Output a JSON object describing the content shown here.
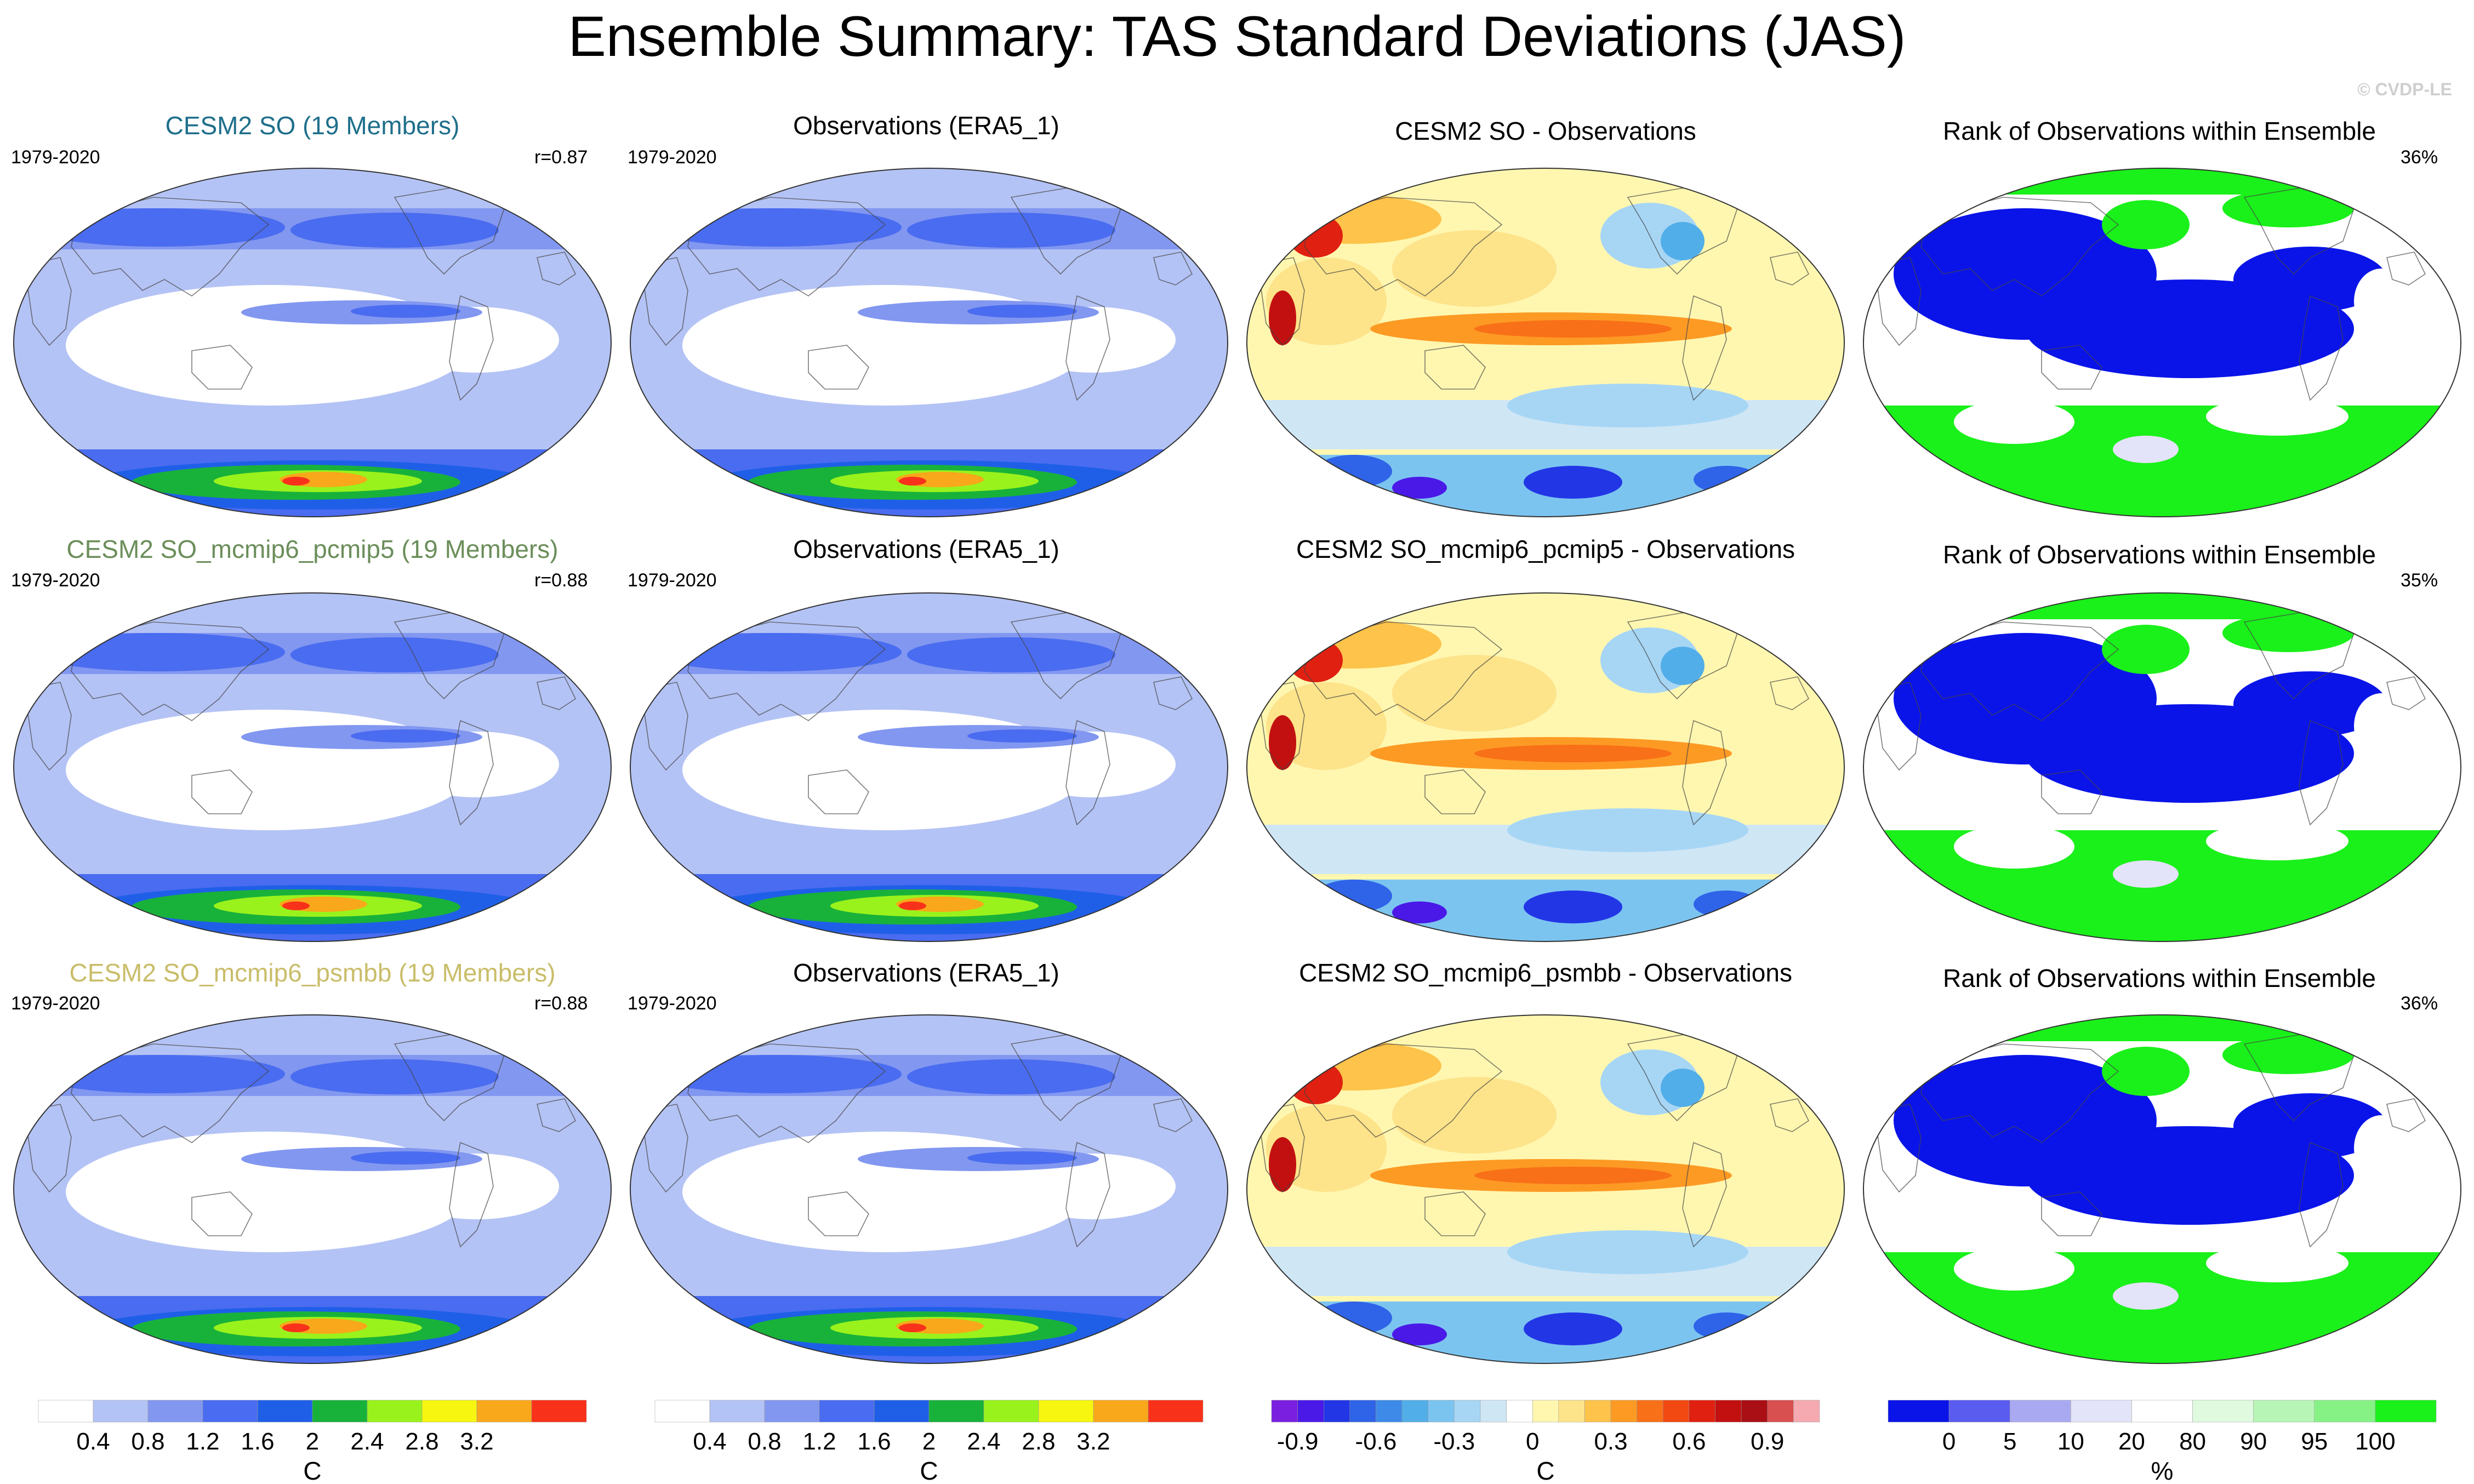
{
  "title": "Ensemble Summary: TAS Standard Deviations (JAS)",
  "credit": "© CVDP-LE",
  "chart_data": {
    "type": "heatmap",
    "projection": "Robinson-like global maps, Pacific-centered",
    "rows": [
      {
        "ensemble": {
          "title": "CESM2 SO (19 Members)",
          "title_color": "#1f6f8b",
          "period": "1979-2020",
          "r": "r=0.87"
        },
        "observations": {
          "title": "Observations (ERA5_1)",
          "period": "1979-2020"
        },
        "difference": {
          "title": "CESM2 SO - Observations"
        },
        "rank": {
          "title": "Rank of Observations within Ensemble",
          "percent": "36%"
        }
      },
      {
        "ensemble": {
          "title": "CESM2 SO_mcmip6_pcmip5 (19 Members)",
          "title_color": "#6b8e5a",
          "period": "1979-2020",
          "r": "r=0.88"
        },
        "observations": {
          "title": "Observations (ERA5_1)",
          "period": "1979-2020"
        },
        "difference": {
          "title": "CESM2 SO_mcmip6_pcmip5 - Observations"
        },
        "rank": {
          "title": "Rank of Observations within Ensemble",
          "percent": "35%"
        }
      },
      {
        "ensemble": {
          "title": "CESM2 SO_mcmip6_psmbb (19 Members)",
          "title_color": "#c9bd6a",
          "period": "1979-2020",
          "r": "r=0.88"
        },
        "observations": {
          "title": "Observations (ERA5_1)",
          "period": "1979-2020"
        },
        "difference": {
          "title": "CESM2 SO_mcmip6_psmbb - Observations"
        },
        "rank": {
          "title": "Rank of Observations within Ensemble",
          "percent": "36%"
        }
      }
    ],
    "colorbars": {
      "std": {
        "unit": "C",
        "colors": [
          "#ffffff",
          "#b4c3f5",
          "#8297f0",
          "#4a6cf0",
          "#1f5fe8",
          "#18b23a",
          "#9af21c",
          "#f6f610",
          "#f8a81a",
          "#f8321a"
        ],
        "tick_labels": [
          "0.4",
          "0.8",
          "1.2",
          "1.6",
          "2",
          "2.4",
          "2.8",
          "3.2"
        ]
      },
      "diff": {
        "unit": "C",
        "colors": [
          "#7a1fe0",
          "#4a19e8",
          "#2236e6",
          "#2f63e8",
          "#3d8ae8",
          "#52aee8",
          "#7cc4f0",
          "#a7d6f5",
          "#cfe6f5",
          "#ffffff",
          "#fff7b0",
          "#fde38a",
          "#fdc34a",
          "#fd9a24",
          "#f87018",
          "#f24812",
          "#e02010",
          "#c21010",
          "#a90f14",
          "#d85050",
          "#f5a9b0"
        ],
        "tick_labels": [
          "-0.9",
          "-0.6",
          "-0.3",
          "0",
          "0.3",
          "0.6",
          "0.9"
        ]
      },
      "rank": {
        "unit": "%",
        "colors": [
          "#0a14e8",
          "#5a5cf0",
          "#a9a9f2",
          "#e3e3f9",
          "#ffffff",
          "#e0fae0",
          "#b6f5b6",
          "#86f286",
          "#1af01a"
        ],
        "tick_labels": [
          "0",
          "5",
          "10",
          "20",
          "80",
          "90",
          "95",
          "100"
        ]
      }
    }
  }
}
